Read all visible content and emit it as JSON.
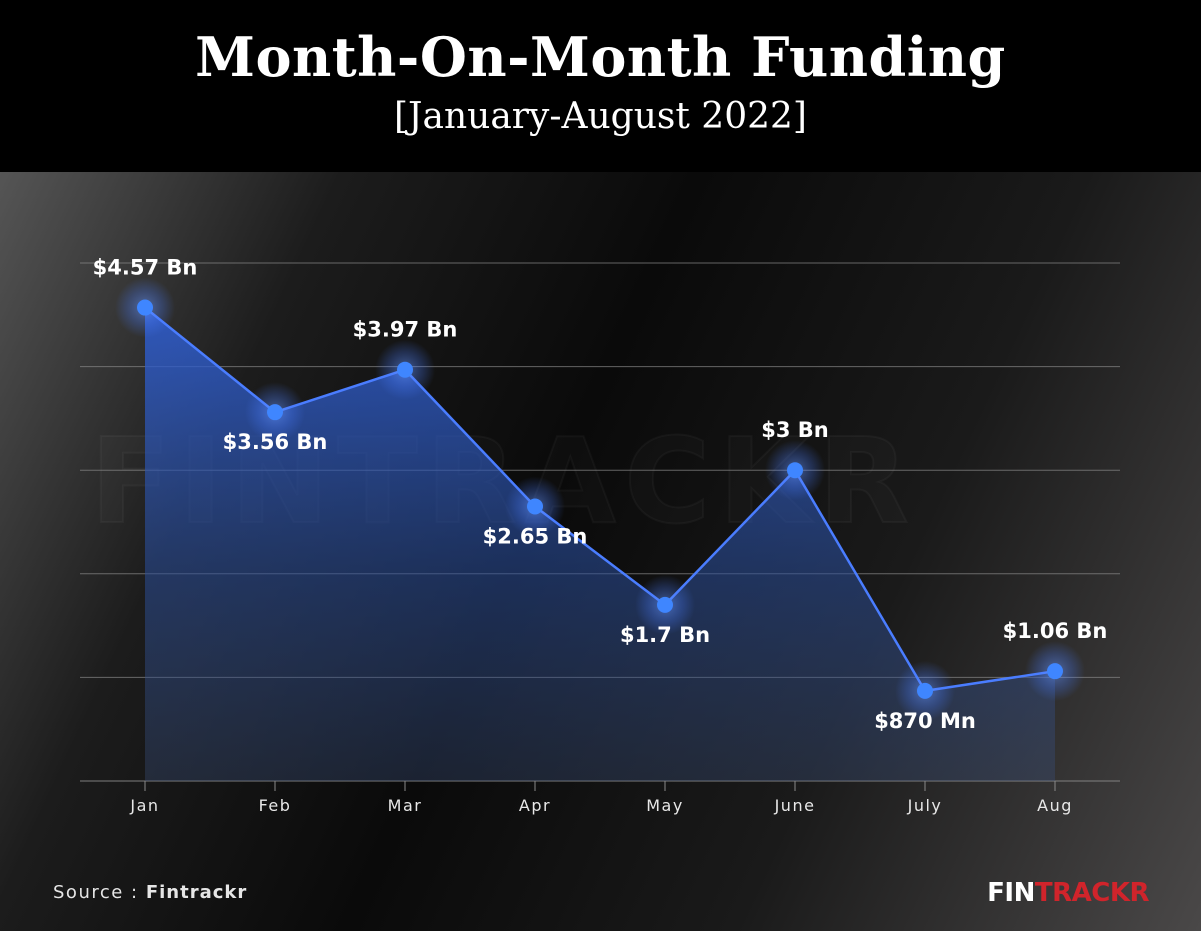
{
  "header": {
    "title": "Month-On-Month Funding",
    "subtitle": "[January-August 2022]"
  },
  "footer": {
    "source_prefix": "Source : ",
    "source_name": "Fintrackr",
    "brand_part1": "FIN",
    "brand_part2": "TRACKR"
  },
  "watermark": "FINTRACKR",
  "colors": {
    "line": "#4a7dff",
    "point": "#3f86ff",
    "area_top": "#2f5fd6",
    "grid": "#8a8a8a",
    "brand_red": "#d0242b"
  },
  "chart_data": {
    "type": "area",
    "categories": [
      "Jan",
      "Feb",
      "Mar",
      "Apr",
      "May",
      "June",
      "July",
      "Aug"
    ],
    "values_mn": [
      4570,
      3560,
      3970,
      2650,
      1700,
      3000,
      870,
      1060
    ],
    "data_labels": [
      "$4.57 Bn",
      "$3.56 Bn",
      "$3.97 Bn",
      "$2.65 Bn",
      "$1.7 Bn",
      "$3 Bn",
      "$870 Mn",
      "$1.06 Bn"
    ],
    "label_position": [
      "above",
      "below",
      "above",
      "below",
      "below",
      "above",
      "below",
      "above"
    ],
    "ylim": [
      0,
      5000
    ],
    "y_gridlines": [
      0,
      1000,
      2000,
      3000,
      4000,
      5000
    ],
    "y_tick_labels_shown": false,
    "grid": true,
    "legend": "none"
  }
}
